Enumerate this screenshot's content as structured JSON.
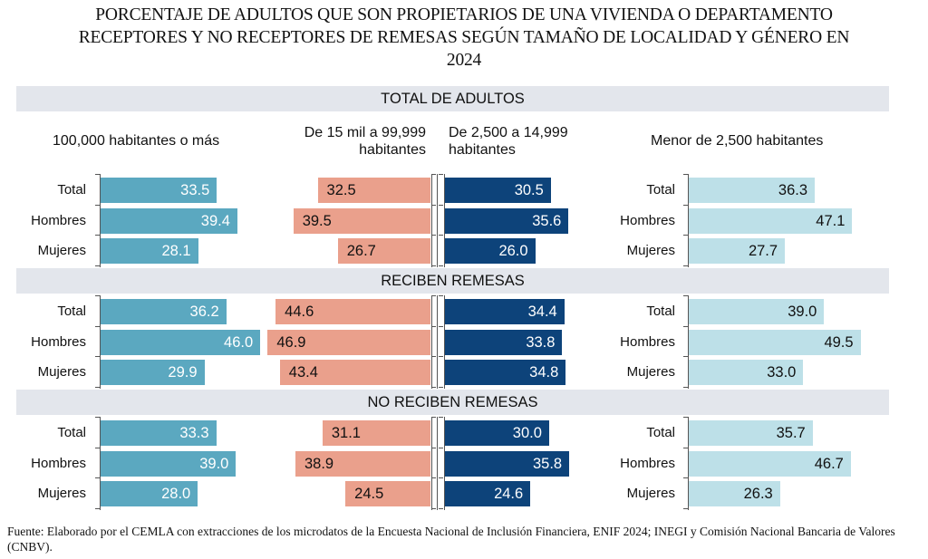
{
  "title": "PORCENTAJE DE ADULTOS QUE SON PROPIETARIOS DE UNA VIVIENDA O DEPARTAMENTO RECEPTORES Y NO RECEPTORES DE REMESAS SEGÚN TAMAÑO DE LOCALIDAD Y GÉNERO EN 2024",
  "title_lines": [
    "PORCENTAJE DE ADULTOS QUE SON PROPIETARIOS DE UNA VIVIENDA O DEPARTAMENTO",
    "RECEPTORES Y NO RECEPTORES DE REMESAS SEGÚN TAMAÑO DE LOCALIDAD Y GÉNERO EN",
    "2024"
  ],
  "source": "Fuente: Elaborado por el CEMLA con extracciones de los microdatos de la Encuesta Nacional de Inclusión Financiera, ENIF 2024; INEGI y Comisión Nacional Bancaria de Valores (CNBV).",
  "chart_data": {
    "type": "bar",
    "orientation": "horizontal",
    "title": "PORCENTAJE DE ADULTOS QUE SON PROPIETARIOS DE UNA VIVIENDA O DEPARTAMENTO RECEPTORES Y NO RECEPTORES DE REMESAS SEGÚN TAMAÑO DE LOCALIDAD Y GÉNERO EN 2024",
    "unit": "%",
    "sections": [
      "TOTAL DE ADULTOS",
      "RECIBEN REMESAS",
      "NO RECIBEN REMESAS"
    ],
    "categories": [
      "Total",
      "Hombres",
      "Mujeres"
    ],
    "panels": [
      {
        "name": "100,000 habitantes o más",
        "name_lines": [
          "100,000 habitantes o más"
        ],
        "color": "#5ba8c0",
        "label_color": "#ffffff",
        "direction": "right",
        "values": [
          [
            33.5,
            39.4,
            28.1
          ],
          [
            36.2,
            46.0,
            29.9
          ],
          [
            33.3,
            39.0,
            28.0
          ]
        ]
      },
      {
        "name": "De 15 mil a 99,999 habitantes",
        "name_lines": [
          "De 15 mil a 99,999",
          "habitantes"
        ],
        "color": "#eaa08c",
        "label_color": "#111111",
        "direction": "left",
        "values": [
          [
            32.5,
            39.5,
            26.7
          ],
          [
            44.6,
            46.9,
            43.4
          ],
          [
            31.1,
            38.9,
            24.5
          ]
        ]
      },
      {
        "name": "De 2,500 a 14,999 habitantes",
        "name_lines": [
          "De 2,500 a 14,999",
          "habitantes"
        ],
        "color": "#0d437a",
        "label_color": "#ffffff",
        "direction": "right",
        "values": [
          [
            30.5,
            35.6,
            26.0
          ],
          [
            34.4,
            33.8,
            34.8
          ],
          [
            30.0,
            35.8,
            24.6
          ]
        ]
      },
      {
        "name": "Menor de 2,500 habitantes",
        "name_lines": [
          "Menor de 2,500 habitantes"
        ],
        "color": "#bde0e8",
        "label_color": "#111111",
        "direction": "right",
        "values": [
          [
            36.3,
            47.1,
            27.7
          ],
          [
            39.0,
            49.5,
            33.0
          ],
          [
            35.7,
            46.7,
            26.3
          ]
        ]
      }
    ],
    "value_labels": true,
    "grid": false,
    "legend": "none"
  }
}
